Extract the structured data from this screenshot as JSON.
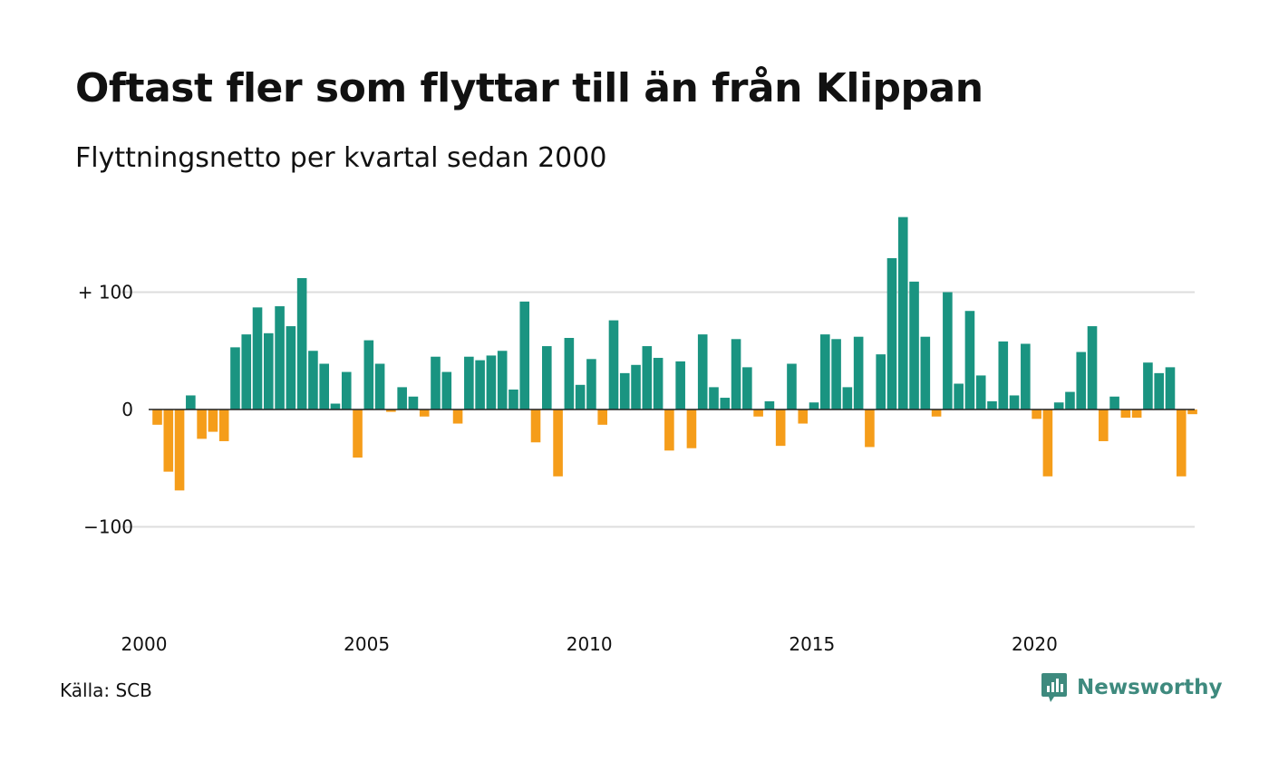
{
  "title": "Oftast fler som flyttar till än från Klippan",
  "subtitle": "Flyttningsnetto per kvartal sedan 2000",
  "source": "Källa: SCB",
  "brand": {
    "name": "Newsworthy",
    "icon": "newsworthy-logo-icon",
    "color": "#3e8a7e"
  },
  "colors": {
    "positive": "#1a9481",
    "negative": "#f59d1a",
    "grid": "#dddddd",
    "zero_line": "#222222"
  },
  "chart_data": {
    "type": "bar",
    "title": "Oftast fler som flyttar till än från Klippan",
    "subtitle": "Flyttningsnetto per kvartal sedan 2000",
    "xlabel": "",
    "ylabel": "",
    "x_start_year": 2000,
    "periods_per_year": 4,
    "ylim": [
      -180,
      165
    ],
    "yticks": [
      {
        "value": 100,
        "label": "+ 100"
      },
      {
        "value": 0,
        "label": "0"
      },
      {
        "value": -100,
        "label": "−100"
      }
    ],
    "xticks": [
      {
        "year": 2000,
        "label": "2000"
      },
      {
        "year": 2005,
        "label": "2005"
      },
      {
        "year": 2010,
        "label": "2010"
      },
      {
        "year": 2015,
        "label": "2015"
      },
      {
        "year": 2020,
        "label": "2020"
      }
    ],
    "grid": true,
    "values": [
      -13,
      -53,
      -69,
      12,
      -25,
      -19,
      -27,
      53,
      64,
      87,
      65,
      88,
      71,
      112,
      50,
      39,
      5,
      32,
      -41,
      59,
      39,
      -2,
      19,
      11,
      -6,
      45,
      32,
      -12,
      45,
      42,
      46,
      50,
      17,
      92,
      -28,
      54,
      -57,
      61,
      21,
      43,
      -13,
      76,
      31,
      38,
      54,
      44,
      -35,
      41,
      -33,
      64,
      19,
      10,
      60,
      36,
      -6,
      7,
      -31,
      39,
      -12,
      6,
      64,
      60,
      19,
      62,
      -32,
      47,
      129,
      164,
      109,
      62,
      -6,
      100,
      22,
      84,
      29,
      7,
      58,
      12,
      56,
      -8,
      -57,
      6,
      15,
      49,
      71,
      -27,
      11,
      -7,
      -7,
      40,
      31,
      36,
      -57,
      -4
    ]
  }
}
